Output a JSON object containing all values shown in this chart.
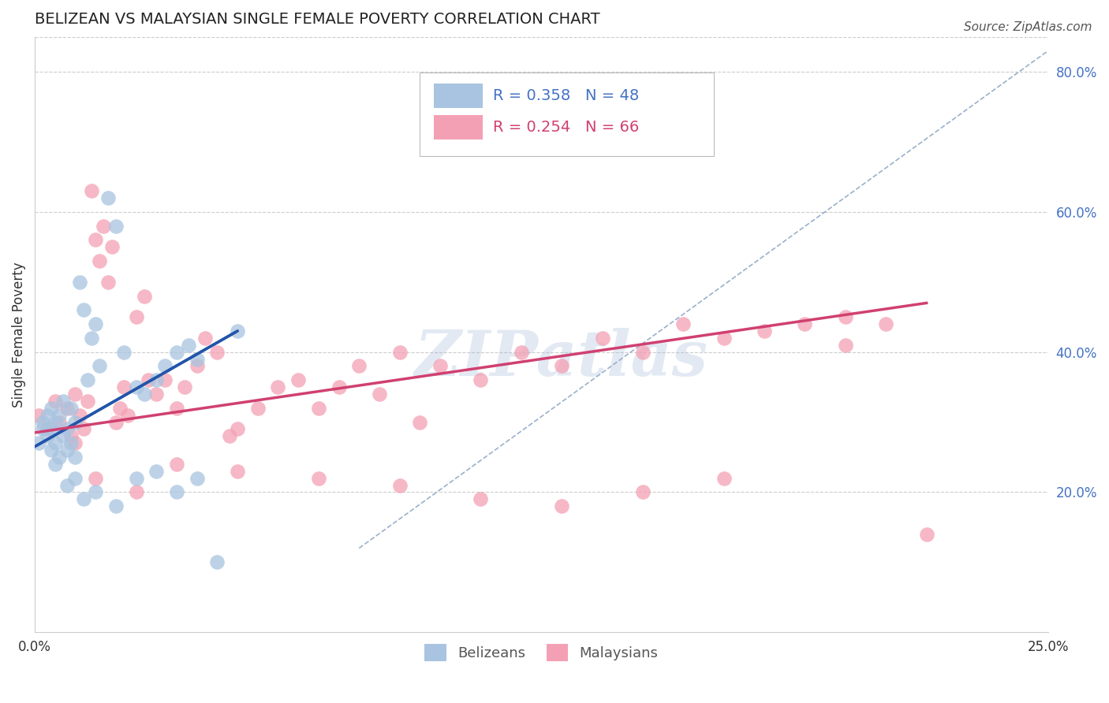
{
  "title": "BELIZEAN VS MALAYSIAN SINGLE FEMALE POVERTY CORRELATION CHART",
  "source": "Source: ZipAtlas.com",
  "ylabel": "Single Female Poverty",
  "xlim": [
    0.0,
    0.25
  ],
  "ylim": [
    0.0,
    0.85
  ],
  "ytick_labels_right": [
    "20.0%",
    "40.0%",
    "60.0%",
    "80.0%"
  ],
  "yticks_right": [
    0.2,
    0.4,
    0.6,
    0.8
  ],
  "belizean_color": "#a8c4e0",
  "malaysian_color": "#f4a0b4",
  "belizean_line_color": "#2255aa",
  "malaysian_line_color": "#d04070",
  "ref_line_color": "#9ab0cc",
  "watermark": "ZIPatlas",
  "watermark_color": "#a0b8d8",
  "background_color": "#ffffff",
  "grid_color": "#cccccc",
  "title_fontsize": 14,
  "tick_fontsize": 12,
  "ylabel_fontsize": 12,
  "source_fontsize": 11,
  "legend_fontsize": 14,
  "belizean_N": 48,
  "malaysian_N": 66,
  "belizean_x": [
    0.001,
    0.002,
    0.002,
    0.003,
    0.003,
    0.004,
    0.004,
    0.004,
    0.005,
    0.005,
    0.006,
    0.006,
    0.007,
    0.007,
    0.008,
    0.008,
    0.009,
    0.009,
    0.01,
    0.01,
    0.011,
    0.012,
    0.013,
    0.014,
    0.015,
    0.016,
    0.018,
    0.02,
    0.022,
    0.025,
    0.027,
    0.03,
    0.032,
    0.035,
    0.038,
    0.04,
    0.01,
    0.015,
    0.02,
    0.025,
    0.005,
    0.008,
    0.012,
    0.03,
    0.035,
    0.04,
    0.045,
    0.05
  ],
  "belizean_y": [
    0.27,
    0.29,
    0.3,
    0.28,
    0.31,
    0.26,
    0.29,
    0.32,
    0.27,
    0.3,
    0.25,
    0.31,
    0.28,
    0.33,
    0.26,
    0.29,
    0.27,
    0.32,
    0.25,
    0.3,
    0.5,
    0.46,
    0.36,
    0.42,
    0.44,
    0.38,
    0.62,
    0.58,
    0.4,
    0.35,
    0.34,
    0.36,
    0.38,
    0.4,
    0.41,
    0.39,
    0.22,
    0.2,
    0.18,
    0.22,
    0.24,
    0.21,
    0.19,
    0.23,
    0.2,
    0.22,
    0.1,
    0.43
  ],
  "malaysian_x": [
    0.001,
    0.003,
    0.005,
    0.006,
    0.008,
    0.009,
    0.01,
    0.011,
    0.012,
    0.013,
    0.014,
    0.015,
    0.016,
    0.017,
    0.018,
    0.019,
    0.02,
    0.021,
    0.022,
    0.023,
    0.025,
    0.027,
    0.028,
    0.03,
    0.032,
    0.035,
    0.037,
    0.04,
    0.042,
    0.045,
    0.048,
    0.05,
    0.055,
    0.06,
    0.065,
    0.07,
    0.075,
    0.08,
    0.085,
    0.09,
    0.095,
    0.1,
    0.11,
    0.12,
    0.13,
    0.14,
    0.15,
    0.16,
    0.17,
    0.18,
    0.19,
    0.2,
    0.21,
    0.22,
    0.01,
    0.015,
    0.025,
    0.035,
    0.05,
    0.07,
    0.09,
    0.11,
    0.13,
    0.15,
    0.17,
    0.2
  ],
  "malaysian_y": [
    0.31,
    0.29,
    0.33,
    0.3,
    0.32,
    0.28,
    0.34,
    0.31,
    0.29,
    0.33,
    0.63,
    0.56,
    0.53,
    0.58,
    0.5,
    0.55,
    0.3,
    0.32,
    0.35,
    0.31,
    0.45,
    0.48,
    0.36,
    0.34,
    0.36,
    0.32,
    0.35,
    0.38,
    0.42,
    0.4,
    0.28,
    0.29,
    0.32,
    0.35,
    0.36,
    0.32,
    0.35,
    0.38,
    0.34,
    0.4,
    0.3,
    0.38,
    0.36,
    0.4,
    0.38,
    0.42,
    0.4,
    0.44,
    0.42,
    0.43,
    0.44,
    0.45,
    0.44,
    0.14,
    0.27,
    0.22,
    0.2,
    0.24,
    0.23,
    0.22,
    0.21,
    0.19,
    0.18,
    0.2,
    0.22,
    0.41
  ],
  "bel_line_x0": 0.0,
  "bel_line_y0": 0.265,
  "bel_line_x1": 0.05,
  "bel_line_y1": 0.43,
  "mal_line_x0": 0.0,
  "mal_line_y0": 0.285,
  "mal_line_x1": 0.22,
  "mal_line_y1": 0.47,
  "ref_line_x0": 0.08,
  "ref_line_y0": 0.12,
  "ref_line_x1": 0.25,
  "ref_line_y1": 0.83
}
